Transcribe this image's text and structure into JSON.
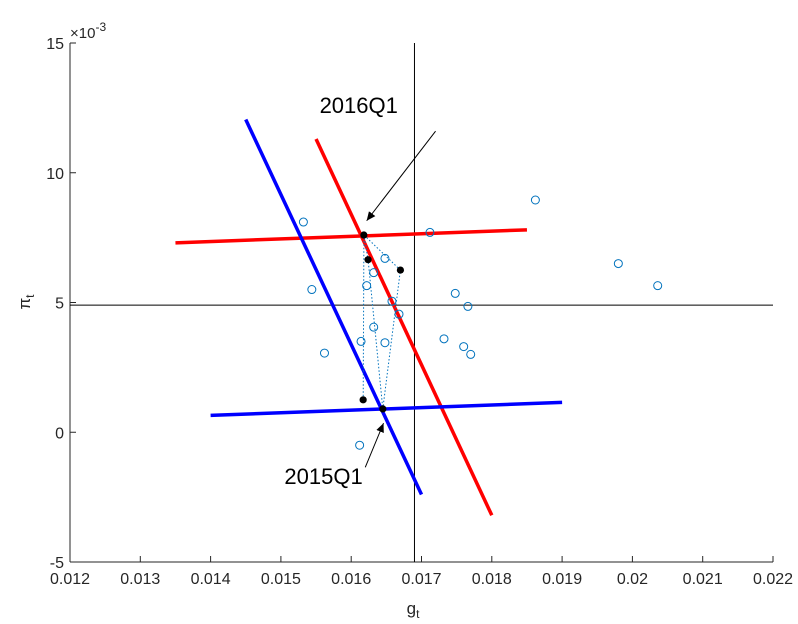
{
  "chart_data": {
    "type": "scatter",
    "title": "",
    "xlabel": "g",
    "xlabel_subscript": "t",
    "ylabel": "π",
    "ylabel_subscript": "t",
    "xlim": [
      0.012,
      0.022
    ],
    "ylim": [
      -5,
      15
    ],
    "y_multiplier_label": "×10",
    "y_multiplier_exponent": "-3",
    "x_ticks": [
      0.012,
      0.013,
      0.014,
      0.015,
      0.016,
      0.017,
      0.018,
      0.019,
      0.02,
      0.021,
      0.022
    ],
    "x_tick_labels": [
      "0.012",
      "0.013",
      "0.014",
      "0.015",
      "0.016",
      "0.017",
      "0.018",
      "0.019",
      "0.02",
      "0.021",
      "0.022"
    ],
    "y_ticks": [
      -5,
      0,
      5,
      10,
      15
    ],
    "y_tick_labels": [
      "-5",
      "0",
      "5",
      "10",
      "15"
    ],
    "grid": false,
    "reference_lines": {
      "vertical_x": 0.0169,
      "horizontal_y": 4.9,
      "color": "#000000"
    },
    "scatter_points": {
      "color": "#0072BD",
      "marker": "open-circle",
      "points": [
        [
          0.01532,
          8.1
        ],
        [
          0.01544,
          5.5
        ],
        [
          0.01562,
          3.05
        ],
        [
          0.01612,
          -0.5
        ],
        [
          0.01614,
          3.5
        ],
        [
          0.01622,
          5.65
        ],
        [
          0.01632,
          6.15
        ],
        [
          0.01632,
          4.05
        ],
        [
          0.01648,
          6.7
        ],
        [
          0.01648,
          3.45
        ],
        [
          0.01658,
          5.05
        ],
        [
          0.01668,
          4.55
        ],
        [
          0.01712,
          7.7
        ],
        [
          0.01732,
          3.6
        ],
        [
          0.01748,
          5.35
        ],
        [
          0.0176,
          3.3
        ],
        [
          0.01766,
          4.85
        ],
        [
          0.0177,
          3.0
        ],
        [
          0.01862,
          8.95
        ],
        [
          0.0198,
          6.5
        ],
        [
          0.02036,
          5.65
        ]
      ]
    },
    "highlight_points": {
      "color": "#000000",
      "marker": "filled-circle",
      "points": [
        [
          0.01618,
          7.6
        ],
        [
          0.01624,
          6.65
        ],
        [
          0.0167,
          6.25
        ],
        [
          0.01617,
          1.25
        ],
        [
          0.01645,
          0.9
        ]
      ]
    },
    "dotted_path": {
      "color": "#0072BD",
      "points": [
        [
          0.01617,
          1.25
        ],
        [
          0.01618,
          7.6
        ],
        [
          0.01624,
          6.65
        ],
        [
          0.01645,
          0.9
        ],
        [
          0.0167,
          6.25
        ],
        [
          0.01618,
          7.6
        ]
      ]
    },
    "lines": [
      {
        "color": "#FF0000",
        "points": [
          [
            0.0135,
            7.3
          ],
          [
            0.0185,
            7.8
          ]
        ]
      },
      {
        "color": "#FF0000",
        "points": [
          [
            0.0155,
            11.3
          ],
          [
            0.018,
            -3.2
          ]
        ]
      },
      {
        "color": "#0000FF",
        "points": [
          [
            0.014,
            0.65
          ],
          [
            0.019,
            1.15
          ]
        ]
      },
      {
        "color": "#0000FF",
        "points": [
          [
            0.0145,
            12.05
          ],
          [
            0.017,
            -2.4
          ]
        ]
      }
    ],
    "annotations": [
      {
        "text": "2016Q1",
        "text_at": [
          0.01555,
          12.3
        ],
        "arrow_from": [
          0.0172,
          11.6
        ],
        "arrow_to": [
          0.01622,
          8.15
        ]
      },
      {
        "text": "2015Q1",
        "text_at": [
          0.01505,
          -2.0
        ],
        "arrow_from": [
          0.0162,
          -1.35
        ],
        "arrow_to": [
          0.01646,
          0.35
        ]
      }
    ]
  }
}
